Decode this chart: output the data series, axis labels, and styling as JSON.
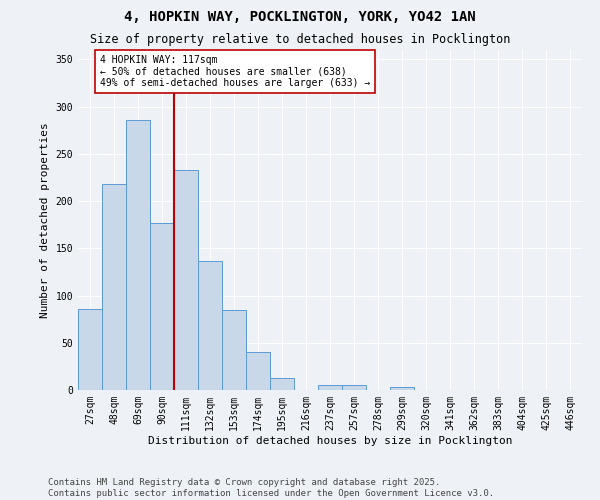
{
  "title_line1": "4, HOPKIN WAY, POCKLINGTON, YORK, YO42 1AN",
  "title_line2": "Size of property relative to detached houses in Pocklington",
  "xlabel": "Distribution of detached houses by size in Pocklington",
  "ylabel": "Number of detached properties",
  "bar_labels": [
    "27sqm",
    "48sqm",
    "69sqm",
    "90sqm",
    "111sqm",
    "132sqm",
    "153sqm",
    "174sqm",
    "195sqm",
    "216sqm",
    "237sqm",
    "257sqm",
    "278sqm",
    "299sqm",
    "320sqm",
    "341sqm",
    "362sqm",
    "383sqm",
    "404sqm",
    "425sqm",
    "446sqm"
  ],
  "bar_values": [
    86,
    218,
    286,
    177,
    233,
    137,
    85,
    40,
    13,
    0,
    5,
    5,
    0,
    3,
    0,
    0,
    0,
    0,
    0,
    0,
    0
  ],
  "bar_color": "#c8d8e8",
  "bar_edgecolor": "#5b9bd5",
  "vline_x_index": 4,
  "vline_color": "#c00000",
  "annotation_text": "4 HOPKIN WAY: 117sqm\n← 50% of detached houses are smaller (638)\n49% of semi-detached houses are larger (633) →",
  "annotation_fontsize": 7,
  "annotation_box_color": "white",
  "annotation_box_edgecolor": "#c00000",
  "ylim": [
    0,
    360
  ],
  "yticks": [
    0,
    50,
    100,
    150,
    200,
    250,
    300,
    350
  ],
  "background_color": "#eef2f7",
  "grid_color": "white",
  "footer_line1": "Contains HM Land Registry data © Crown copyright and database right 2025.",
  "footer_line2": "Contains public sector information licensed under the Open Government Licence v3.0.",
  "footer_fontsize": 6.5,
  "title1_fontsize": 10,
  "title2_fontsize": 8.5,
  "xlabel_fontsize": 8,
  "ylabel_fontsize": 8,
  "tick_fontsize": 7
}
